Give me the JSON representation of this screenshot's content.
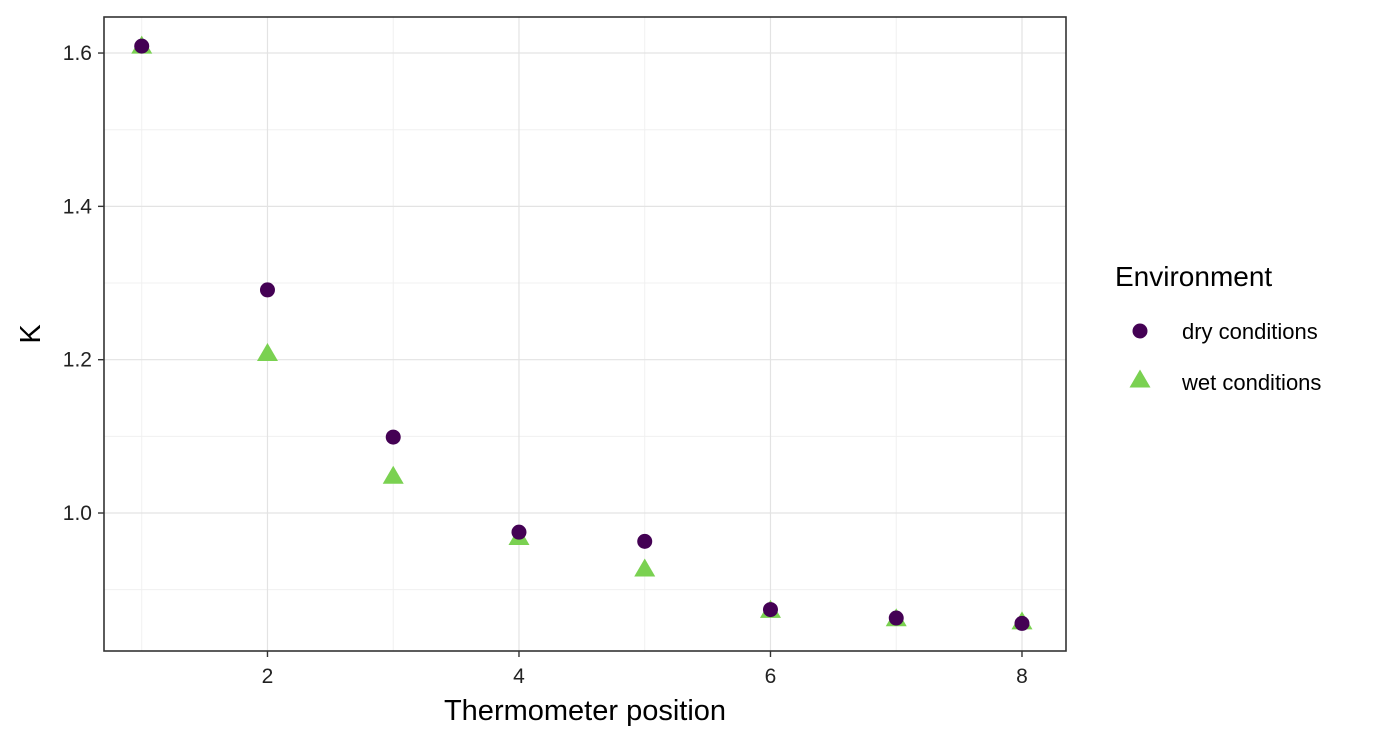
{
  "chart_data": {
    "type": "scatter",
    "title": "",
    "xlabel": "Thermometer position",
    "ylabel": "K",
    "xlim": [
      0.7,
      8.35
    ],
    "ylim": [
      0.82,
      1.647
    ],
    "x_ticks": [
      2,
      4,
      6,
      8
    ],
    "x_tick_labels": [
      "2",
      "4",
      "6",
      "8"
    ],
    "x_minor": [
      1,
      3,
      5,
      7
    ],
    "y_ticks": [
      1.0,
      1.2,
      1.4,
      1.6
    ],
    "y_tick_labels": [
      "1.0",
      "1.2",
      "1.4",
      "1.6"
    ],
    "y_minor": [
      0.9,
      1.1,
      1.3,
      1.5
    ],
    "grid": true,
    "legend": {
      "title": "Environment",
      "position": "right"
    },
    "series": [
      {
        "name": "dry conditions",
        "marker": "circle",
        "color": "#440154",
        "x": [
          1,
          2,
          3,
          4,
          5,
          6,
          7,
          8
        ],
        "y": [
          1.609,
          1.291,
          1.099,
          0.975,
          0.963,
          0.874,
          0.863,
          0.856
        ]
      },
      {
        "name": "wet conditions",
        "marker": "triangle",
        "color": "#7AD151",
        "x": [
          1,
          2,
          3,
          4,
          5,
          6,
          7,
          8
        ],
        "y": [
          1.609,
          1.208,
          1.048,
          0.968,
          0.927,
          0.873,
          0.862,
          0.858
        ]
      }
    ]
  }
}
